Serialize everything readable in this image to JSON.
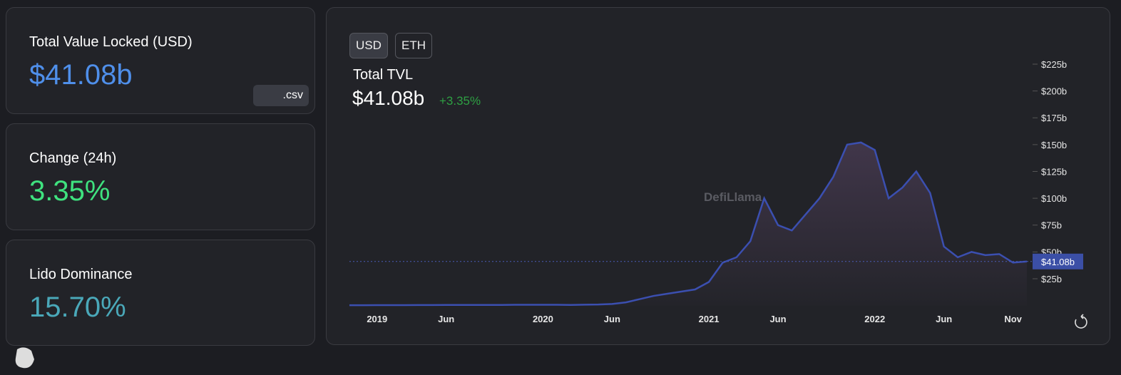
{
  "cards": [
    {
      "label": "Total Value Locked (USD)",
      "value": "$41.08b",
      "button": ".csv"
    },
    {
      "label": "Change (24h)",
      "value": "3.35%"
    },
    {
      "label": "Lido Dominance",
      "value": "15.70%"
    }
  ],
  "toggle": [
    "USD",
    "ETH"
  ],
  "chart_data": {
    "type": "area",
    "title": "Total TVL",
    "headline": "$41.08b",
    "change": "+3.35%",
    "watermark": "DefiLlama",
    "color": "#3b4fb0",
    "x": [
      "2018-11",
      "2018-12",
      "2019-01",
      "2019-02",
      "2019-03",
      "2019-04",
      "2019-05",
      "2019-06",
      "2019-07",
      "2019-08",
      "2019-09",
      "2019-10",
      "2019-11",
      "2019-12",
      "2020-01",
      "2020-02",
      "2020-03",
      "2020-04",
      "2020-05",
      "2020-06",
      "2020-07",
      "2020-08",
      "2020-09",
      "2020-10",
      "2020-11",
      "2020-12",
      "2021-01",
      "2021-02",
      "2021-03",
      "2021-04",
      "2021-05",
      "2021-06",
      "2021-07",
      "2021-08",
      "2021-09",
      "2021-10",
      "2021-11",
      "2021-12",
      "2022-01",
      "2022-02",
      "2022-03",
      "2022-04",
      "2022-05",
      "2022-06",
      "2022-07",
      "2022-08",
      "2022-09",
      "2022-10",
      "2022-11",
      "2022-12"
    ],
    "values": [
      0.3,
      0.3,
      0.4,
      0.4,
      0.4,
      0.5,
      0.5,
      0.6,
      0.6,
      0.6,
      0.6,
      0.6,
      0.7,
      0.7,
      0.7,
      0.7,
      0.6,
      0.8,
      1,
      1.5,
      3,
      6,
      9,
      11,
      13,
      15,
      22,
      40,
      45,
      60,
      100,
      75,
      70,
      85,
      100,
      120,
      150,
      152,
      145,
      100,
      110,
      125,
      105,
      55,
      45,
      50,
      47,
      48,
      40,
      41.08
    ],
    "xlim": [
      "2018-11",
      "2022-12"
    ],
    "xticks": [
      {
        "value": "2019-01",
        "label": "2019"
      },
      {
        "value": "2019-06",
        "label": "Jun"
      },
      {
        "value": "2020-01",
        "label": "2020"
      },
      {
        "value": "2020-06",
        "label": "Jun"
      },
      {
        "value": "2021-01",
        "label": "2021"
      },
      {
        "value": "2021-06",
        "label": "Jun"
      },
      {
        "value": "2022-01",
        "label": "2022"
      },
      {
        "value": "2022-06",
        "label": "Jun"
      },
      {
        "value": "2022-11",
        "label": "Nov"
      }
    ],
    "ylim": [
      0,
      225
    ],
    "yticks": [
      {
        "value": 25,
        "label": "$25b"
      },
      {
        "value": 50,
        "label": "$50b"
      },
      {
        "value": 75,
        "label": "$75b"
      },
      {
        "value": 100,
        "label": "$100b"
      },
      {
        "value": 125,
        "label": "$125b"
      },
      {
        "value": 150,
        "label": "$150b"
      },
      {
        "value": 175,
        "label": "$175b"
      },
      {
        "value": 200,
        "label": "$200b"
      },
      {
        "value": 225,
        "label": "$225b"
      }
    ],
    "current": {
      "value": 41.08,
      "label": "$41.08b"
    }
  }
}
